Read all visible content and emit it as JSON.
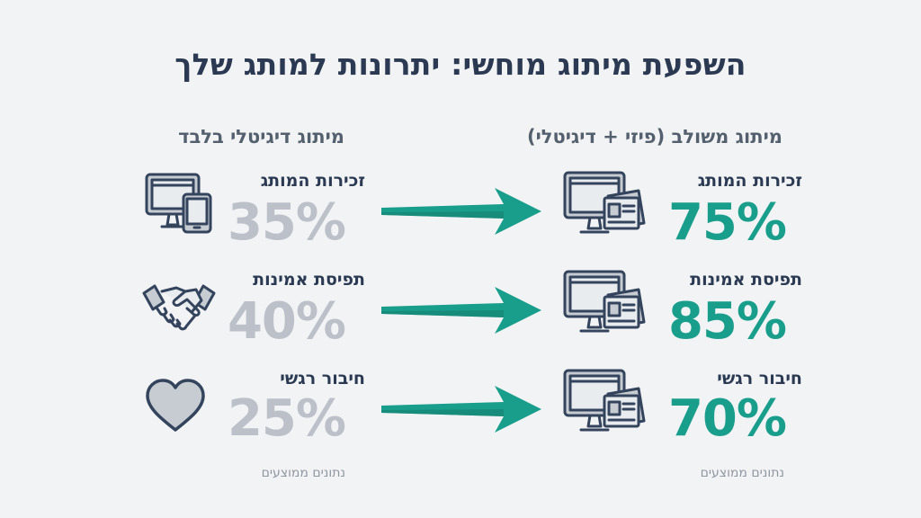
{
  "title": "השפעת מיתוג מוחשי: יתרונות למותג שלך",
  "columns": {
    "hybrid": {
      "heading": "מיתוג משולב (פיזי + דיגיטלי)",
      "footnote": "נתונים ממוצעים"
    },
    "digital": {
      "heading": "מיתוג דיגיטלי בלבד",
      "footnote": "נתונים ממוצעים"
    }
  },
  "rows": [
    {
      "label": "זכירות המותג",
      "digital_value": "35%",
      "hybrid_value": "75%",
      "digital_icon": "devices-icon",
      "hybrid_icon": "monitor-with-cards-icon"
    },
    {
      "label": "תפיסת אמינות",
      "digital_value": "40%",
      "hybrid_value": "85%",
      "digital_icon": "handshake-icon",
      "hybrid_icon": "monitor-with-cards-icon"
    },
    {
      "label": "חיבור רגשי",
      "digital_value": "25%",
      "hybrid_value": "70%",
      "digital_icon": "heart-icon",
      "hybrid_icon": "monitor-with-cards-icon"
    }
  ],
  "colors": {
    "background": "#f2f3f5",
    "title": "#2b3a52",
    "accent": "#1a9e8c",
    "muted_value": "#bcc1c9",
    "icon_stroke": "#34445c"
  }
}
